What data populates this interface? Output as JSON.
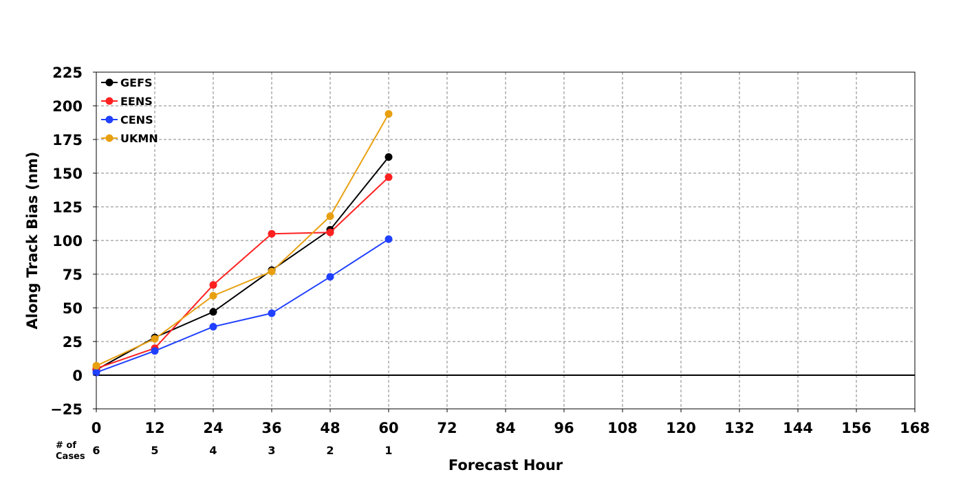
{
  "chart_data": {
    "type": "line",
    "xlabel": "Forecast Hour",
    "ylabel": "Along Track Bias (nm)",
    "xlim": [
      0,
      168
    ],
    "ylim": [
      -25,
      225
    ],
    "x_ticks": [
      0,
      12,
      24,
      36,
      48,
      60,
      72,
      84,
      96,
      108,
      120,
      132,
      144,
      156,
      168
    ],
    "y_ticks": [
      -25,
      0,
      25,
      50,
      75,
      100,
      125,
      150,
      175,
      200,
      225
    ],
    "grid": true,
    "legend_position": "top-left",
    "cases_label": "# of\nCases",
    "cases": [
      {
        "x": 0,
        "count": "6"
      },
      {
        "x": 12,
        "count": "5"
      },
      {
        "x": 24,
        "count": "4"
      },
      {
        "x": 36,
        "count": "3"
      },
      {
        "x": 48,
        "count": "2"
      },
      {
        "x": 60,
        "count": "1"
      }
    ],
    "x": [
      0,
      12,
      24,
      36,
      48,
      60
    ],
    "series": [
      {
        "name": "GEFS",
        "color": "#000000",
        "values": [
          4,
          28,
          47,
          78,
          108,
          162
        ]
      },
      {
        "name": "EENS",
        "color": "#ff2020",
        "values": [
          5,
          20,
          67,
          105,
          106,
          147
        ]
      },
      {
        "name": "CENS",
        "color": "#2040ff",
        "values": [
          2,
          18,
          36,
          46,
          73,
          101
        ]
      },
      {
        "name": "UKMN",
        "color": "#e8a010",
        "values": [
          7,
          27,
          59,
          77,
          118,
          194
        ]
      }
    ]
  }
}
